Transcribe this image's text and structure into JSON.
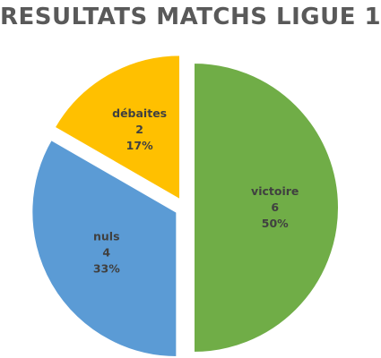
{
  "chart_data": {
    "type": "pie",
    "title": "RESULTATS MATCHS LIGUE 1",
    "slices": [
      {
        "name": "victoire",
        "value": 6,
        "percent": "50%",
        "color": "#70AD47"
      },
      {
        "name": "nuls",
        "value": 4,
        "percent": "33%",
        "color": "#5B9BD5"
      },
      {
        "name": "débaites",
        "value": 2,
        "percent": "17%",
        "color": "#FFC000"
      }
    ],
    "legend": "none",
    "data_labels": "inside"
  }
}
